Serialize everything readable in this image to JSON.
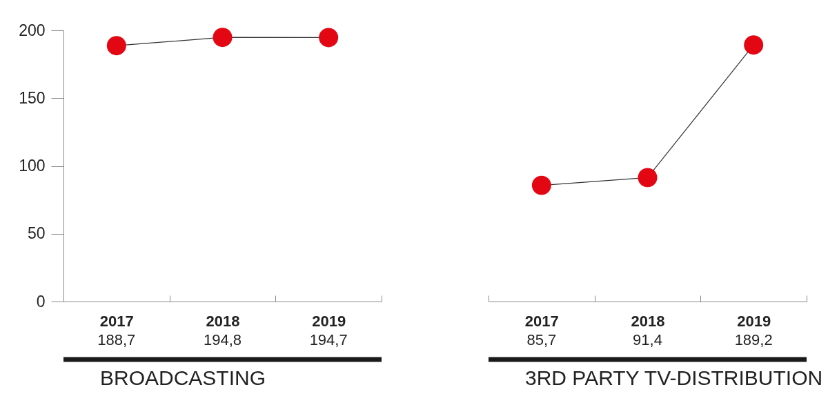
{
  "chart_data": [
    {
      "type": "line",
      "title": "BROADCASTING",
      "categories": [
        "2017",
        "2018",
        "2019"
      ],
      "values": [
        188.7,
        194.8,
        194.7
      ],
      "value_labels": [
        "188,7",
        "194,8",
        "194,7"
      ],
      "color": "#e30613",
      "ylim": [
        0,
        200
      ],
      "yticks": [
        0,
        50,
        100,
        150,
        200
      ],
      "marker": "circle"
    },
    {
      "type": "line",
      "title": "3RD PARTY TV-DISTRIBUTION",
      "categories": [
        "2017",
        "2018",
        "2019"
      ],
      "values": [
        85.7,
        91.4,
        189.2
      ],
      "value_labels": [
        "85,7",
        "91,4",
        "189,2"
      ],
      "color": "#e30613",
      "ylim": [
        0,
        200
      ],
      "tick_labels": "x",
      "marker": "circle"
    }
  ]
}
